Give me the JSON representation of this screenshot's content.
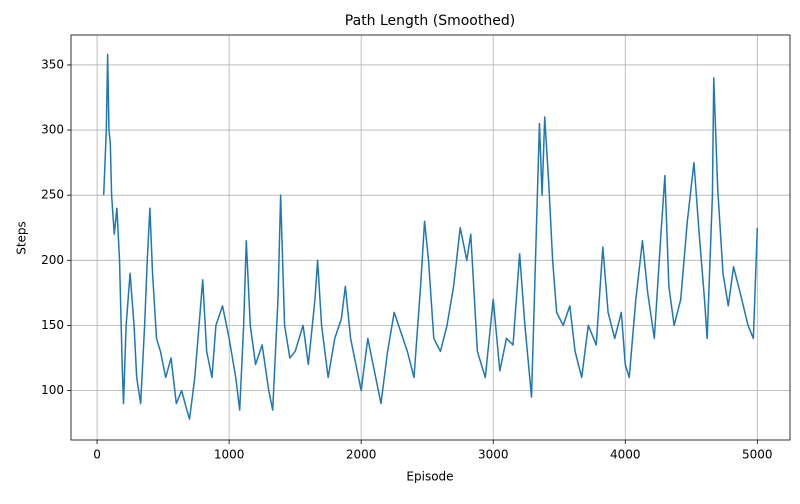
{
  "chart_data": {
    "type": "line",
    "title": "Path Length (Smoothed)",
    "x_label": "Episode",
    "y_label": "Steps",
    "x": [
      50,
      70,
      80,
      90,
      100,
      110,
      130,
      150,
      170,
      190,
      200,
      220,
      250,
      280,
      300,
      330,
      360,
      380,
      400,
      420,
      450,
      480,
      520,
      560,
      600,
      640,
      680,
      700,
      740,
      780,
      800,
      830,
      870,
      900,
      950,
      1000,
      1050,
      1080,
      1110,
      1130,
      1160,
      1200,
      1250,
      1300,
      1330,
      1370,
      1390,
      1420,
      1460,
      1500,
      1560,
      1600,
      1650,
      1670,
      1700,
      1750,
      1800,
      1850,
      1880,
      1920,
      1960,
      2000,
      2050,
      2100,
      2150,
      2200,
      2250,
      2300,
      2350,
      2400,
      2450,
      2480,
      2510,
      2550,
      2600,
      2650,
      2700,
      2750,
      2800,
      2830,
      2880,
      2940,
      3000,
      3050,
      3100,
      3150,
      3200,
      3240,
      3290,
      3320,
      3350,
      3370,
      3390,
      3420,
      3450,
      3480,
      3530,
      3580,
      3620,
      3670,
      3720,
      3780,
      3830,
      3870,
      3920,
      3970,
      4000,
      4030,
      4080,
      4130,
      4170,
      4220,
      4270,
      4300,
      4330,
      4370,
      4420,
      4470,
      4520,
      4560,
      4600,
      4620,
      4660,
      4670,
      4700,
      4740,
      4780,
      4820,
      4870,
      4930,
      4970,
      5000
    ],
    "values": [
      250,
      300,
      358,
      300,
      290,
      250,
      220,
      240,
      200,
      120,
      90,
      150,
      190,
      150,
      110,
      90,
      150,
      200,
      240,
      190,
      140,
      130,
      110,
      125,
      90,
      100,
      85,
      78,
      110,
      160,
      185,
      130,
      110,
      150,
      165,
      140,
      110,
      85,
      150,
      215,
      150,
      120,
      135,
      100,
      85,
      170,
      250,
      150,
      125,
      130,
      150,
      120,
      170,
      200,
      150,
      110,
      140,
      155,
      180,
      140,
      120,
      100,
      140,
      115,
      90,
      130,
      160,
      145,
      130,
      110,
      180,
      230,
      200,
      140,
      130,
      150,
      180,
      225,
      200,
      220,
      130,
      110,
      170,
      115,
      140,
      135,
      205,
      150,
      95,
      200,
      305,
      250,
      310,
      260,
      200,
      160,
      150,
      165,
      130,
      110,
      150,
      135,
      210,
      160,
      140,
      160,
      120,
      110,
      170,
      215,
      175,
      140,
      220,
      265,
      180,
      150,
      170,
      230,
      275,
      220,
      170,
      140,
      250,
      340,
      255,
      190,
      165,
      195,
      175,
      150,
      140,
      225
    ],
    "color": "#1f77b4",
    "xlim": [
      -197.5,
      5247.5
    ],
    "xticks": [
      0,
      1000,
      2000,
      3000,
      4000,
      5000
    ],
    "ylim": [
      62,
      373
    ],
    "yticks": [
      100,
      150,
      200,
      250,
      300,
      350
    ],
    "grid": true
  }
}
